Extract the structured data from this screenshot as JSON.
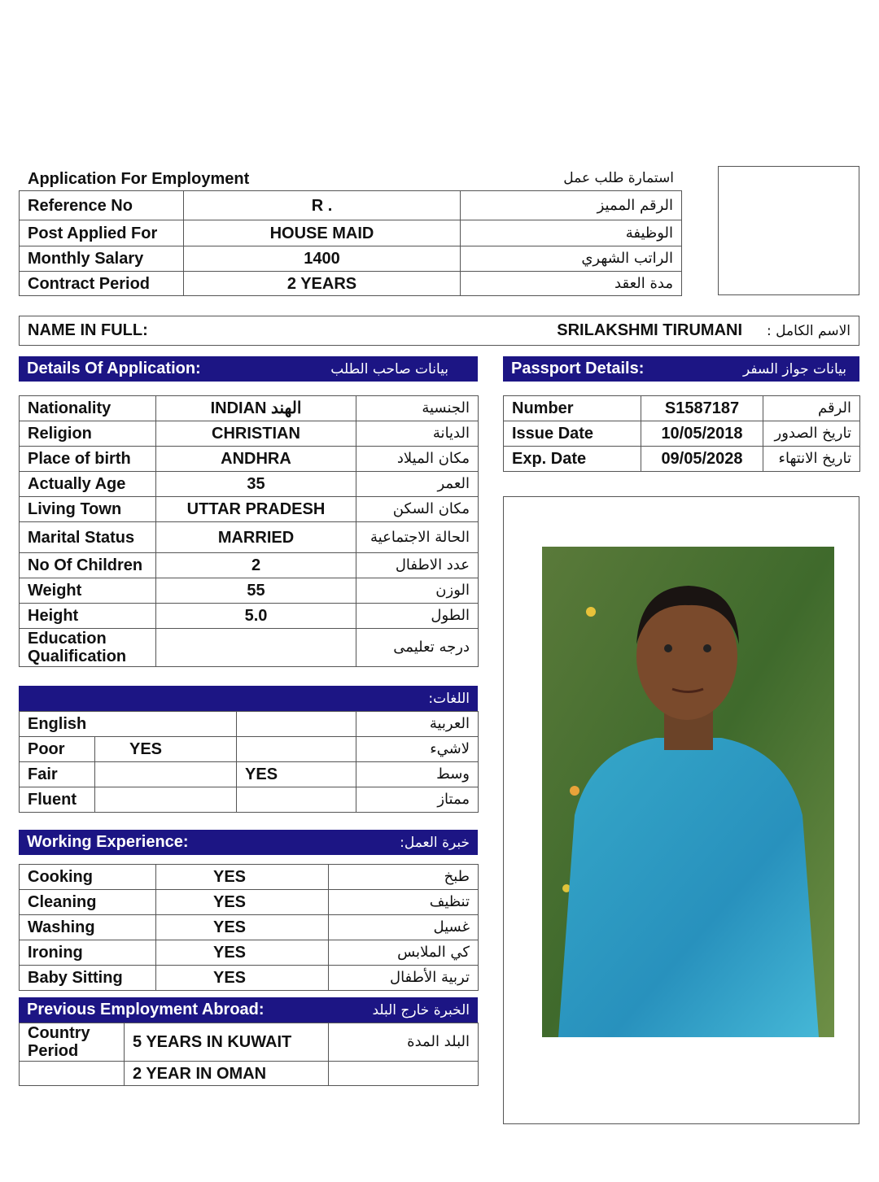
{
  "header": {
    "title_en": "Application For Employment",
    "title_ar": "استمارة طلب  عمل"
  },
  "top_table": [
    {
      "en": "Reference No",
      "value": "R .",
      "ar": "الرقم المميز"
    },
    {
      "en": "Post Applied For",
      "value": "HOUSE MAID",
      "ar": "الوظيفة"
    },
    {
      "en": "Monthly Salary",
      "value": "1400",
      "ar": "الراتب الشهري"
    },
    {
      "en": "Contract Period",
      "value": "2 YEARS",
      "ar": "مدة العقد"
    }
  ],
  "name": {
    "label_en": "NAME IN FULL:",
    "value": "SRILAKSHMI TIRUMANI",
    "label_ar": "الاسم الكامل :"
  },
  "details": {
    "title_en": "Details Of Application:",
    "title_ar": "بيانات صاحب الطلب",
    "rows": [
      {
        "en": "Nationality",
        "value": "INDIAN الهند",
        "ar": "الجنسية"
      },
      {
        "en": "Religion",
        "value": "CHRISTIAN",
        "ar": "الديانة"
      },
      {
        "en": "Place of birth",
        "value": "ANDHRA",
        "ar": "مكان الميلاد"
      },
      {
        "en": "Actually Age",
        "value": "35",
        "ar": "العمر"
      },
      {
        "en": "Living Town",
        "value": "UTTAR PRADESH",
        "ar": "مكان السكن"
      },
      {
        "en": "Marital Status",
        "value": "MARRIED",
        "ar": "الحالة الاجتماعية"
      },
      {
        "en": "No Of Children",
        "value": "2",
        "ar": "عدد الاطفال"
      },
      {
        "en": "Weight",
        "value": "55",
        "ar": "الوزن"
      },
      {
        "en": "Height",
        "value": "5.0",
        "ar": "الطول"
      },
      {
        "en": "Education Qualification",
        "value": "",
        "ar": "درجه تعليمى"
      }
    ]
  },
  "passport": {
    "title_en": "Passport Details:",
    "title_ar": "بيانات جواز السفر",
    "rows": [
      {
        "en": "Number",
        "value": "S1587187",
        "ar": "الرقم"
      },
      {
        "en": "Issue Date",
        "value": "10/05/2018",
        "ar": "تاريخ الصدور"
      },
      {
        "en": "Exp. Date",
        "value": "09/05/2028",
        "ar": "تاريخ الانتهاء"
      }
    ]
  },
  "languages": {
    "title_ar": "اللغات:",
    "english": "English",
    "arabic": "العربية",
    "rows": [
      {
        "en": "Poor",
        "english": "YES",
        "arabic": "",
        "ar": "لاشيء"
      },
      {
        "en": "Fair",
        "english": "",
        "arabic": "YES",
        "ar": "وسط"
      },
      {
        "en": "Fluent",
        "english": "",
        "arabic": "",
        "ar": "ممتاز"
      }
    ]
  },
  "experience": {
    "title_en": "Working Experience:",
    "title_ar": "خبرة العمل:",
    "rows": [
      {
        "en": "Cooking",
        "value": "YES",
        "ar": "طبخ"
      },
      {
        "en": "Cleaning",
        "value": "YES",
        "ar": "تنظيف"
      },
      {
        "en": "Washing",
        "value": "YES",
        "ar": "غسيل"
      },
      {
        "en": "Ironing",
        "value": "YES",
        "ar": "كي الملابس"
      },
      {
        "en": "Baby Sitting",
        "value": "YES",
        "ar": "تربية الأطفال"
      }
    ]
  },
  "abroad": {
    "title_en": "Previous Employment Abroad:",
    "title_ar": "الخبرة خارج البلد",
    "label_en": "Country Period",
    "value1": "5 YEARS IN KUWAIT",
    "label_ar": "البلد المدة",
    "value2": "2 YEAR IN OMAN"
  },
  "colors": {
    "band": "#1c1584"
  }
}
